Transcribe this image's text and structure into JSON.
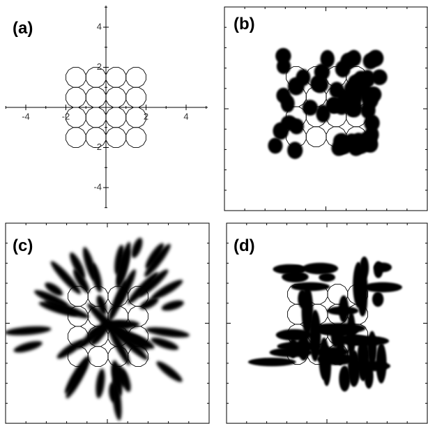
{
  "panels": [
    {
      "label": "(a)"
    },
    {
      "label": "(b)"
    },
    {
      "label": "(c)"
    },
    {
      "label": "(d)"
    }
  ],
  "axes": {
    "xticks": [
      -4,
      -2,
      2,
      4
    ],
    "yticks": [
      4,
      2,
      -2,
      -4
    ]
  }
}
